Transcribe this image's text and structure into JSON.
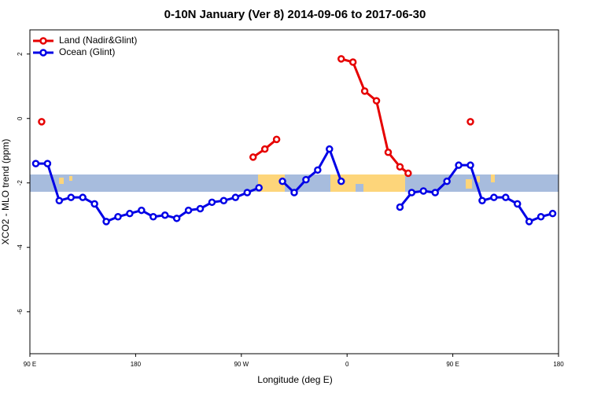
{
  "chart_data": {
    "type": "line",
    "title": "0-10N January (Ver 8)   2014-09-06 to 2017-06-30",
    "x_label": "Longitude (deg E)",
    "y_label": "XCO2 - MLO trend (ppm)",
    "xlim": [
      90,
      540
    ],
    "ylim": [
      -7.3,
      2.75
    ],
    "xticks": [
      {
        "value": 90,
        "label": "90 E"
      },
      {
        "value": 180,
        "label": "180"
      },
      {
        "value": 270,
        "label": "90 W"
      },
      {
        "value": 360,
        "label": "0"
      },
      {
        "value": 450,
        "label": "90 E"
      },
      {
        "value": 540,
        "label": "180"
      }
    ],
    "yticks": [
      -6,
      -4,
      -2,
      0,
      2
    ],
    "legend": "top-left",
    "series": [
      {
        "name": "Land (Nadir&Glint)",
        "color": "#e60000",
        "x": [
          100,
          110,
          280,
          290,
          300,
          310,
          355,
          365,
          375,
          385,
          395,
          405,
          412,
          420,
          465
        ],
        "values": [
          -0.1,
          null,
          -1.2,
          -0.95,
          -0.65,
          null,
          1.85,
          1.75,
          0.85,
          0.55,
          -1.05,
          -1.5,
          -1.7,
          null,
          -0.1
        ]
      },
      {
        "name": "Ocean (Glint)",
        "color": "#0000e6",
        "x": [
          95,
          105,
          115,
          125,
          135,
          145,
          155,
          165,
          175,
          185,
          195,
          205,
          215,
          225,
          235,
          245,
          255,
          265,
          275,
          285,
          295,
          305,
          315,
          325,
          335,
          345,
          355,
          380,
          405,
          415,
          425,
          435,
          445,
          455,
          465,
          475,
          485,
          495,
          505,
          515,
          525,
          535
        ],
        "values": [
          -1.4,
          -1.4,
          -2.55,
          -2.45,
          -2.45,
          -2.65,
          -3.2,
          -3.05,
          -2.95,
          -2.85,
          -3.05,
          -3.0,
          -3.1,
          -2.85,
          -2.8,
          -2.6,
          -2.55,
          -2.45,
          -2.3,
          -2.15,
          null,
          -1.95,
          -2.3,
          -1.9,
          -1.6,
          -0.95,
          -1.95,
          null,
          -2.75,
          -2.3,
          -2.25,
          -2.3,
          -1.95,
          -1.45,
          -1.45,
          -2.55,
          -2.45,
          -2.45,
          -2.65,
          -3.2,
          -3.05,
          -2.95
        ]
      }
    ]
  }
}
